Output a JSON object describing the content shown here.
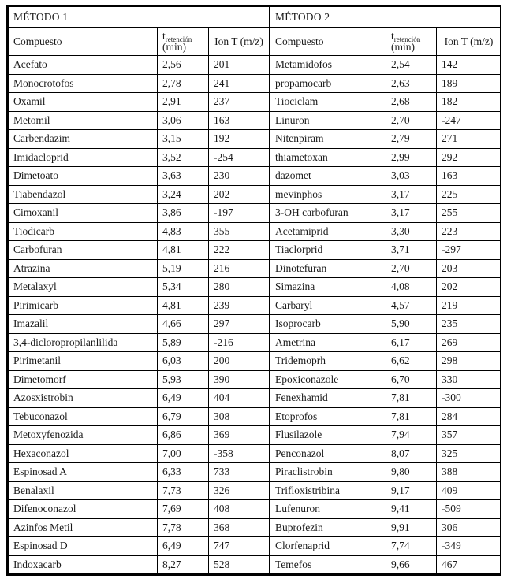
{
  "page": {
    "background": "#ffffff",
    "text_color": "#1a1a1a",
    "border_color": "#000000"
  },
  "chart_data": [
    {
      "type": "table",
      "title": "MÉTODO 1",
      "headers": {
        "compound": "Compuesto",
        "t_symbol": "t",
        "t_sub": "retención",
        "t_unit": "(min)",
        "ion": "Ion T (m/z)"
      },
      "rows": [
        [
          "Acefato",
          "2,56",
          "201"
        ],
        [
          "Monocrotofos",
          "2,78",
          "241"
        ],
        [
          "Oxamil",
          "2,91",
          "237"
        ],
        [
          "Metomil",
          "3,06",
          "163"
        ],
        [
          "Carbendazim",
          "3,15",
          "192"
        ],
        [
          "Imidacloprid",
          "3,52",
          "-254"
        ],
        [
          "Dimetoato",
          "3,63",
          "230"
        ],
        [
          "Tiabendazol",
          "3,24",
          "202"
        ],
        [
          "Cimoxanil",
          "3,86",
          "-197"
        ],
        [
          "Tiodicarb",
          "4,83",
          "355"
        ],
        [
          "Carbofuran",
          "4,81",
          "222"
        ],
        [
          "Atrazina",
          "5,19",
          "216"
        ],
        [
          "Metalaxyl",
          "5,34",
          "280"
        ],
        [
          "Pirimicarb",
          "4,81",
          "239"
        ],
        [
          "Imazalil",
          "4,66",
          "297"
        ],
        [
          "3,4-dicloropropilanlilida",
          "5,89",
          "-216"
        ],
        [
          "Pirimetanil",
          "6,03",
          "200"
        ],
        [
          "Dimetomorf",
          "5,93",
          "390"
        ],
        [
          "Azosxistrobin",
          "6,49",
          "404"
        ],
        [
          "Tebuconazol",
          "6,79",
          "308"
        ],
        [
          "Metoxyfenozida",
          "6,86",
          "369"
        ],
        [
          "Hexaconazol",
          "7,00",
          "-358"
        ],
        [
          "Espinosad A",
          "6,33",
          "733"
        ],
        [
          "Benalaxil",
          "7,73",
          "326"
        ],
        [
          "Difenoconazol",
          "7,69",
          "408"
        ],
        [
          "Azinfos Metil",
          "7,78",
          "368"
        ],
        [
          "Espinosad D",
          "6,49",
          "747"
        ],
        [
          "Indoxacarb",
          "8,27",
          "528"
        ]
      ]
    },
    {
      "type": "table",
      "title": "MÉTODO 2",
      "headers": {
        "compound": "Compuesto",
        "t_symbol": "t",
        "t_sub": "retención",
        "t_unit": "(min)",
        "ion": "Ion T (m/z)"
      },
      "rows": [
        [
          "Metamidofos",
          "2,54",
          "142"
        ],
        [
          "propamocarb",
          "2,63",
          "189"
        ],
        [
          "Tiociclam",
          "2,68",
          "182"
        ],
        [
          "Linuron",
          "2,70",
          "-247"
        ],
        [
          "Nitenpiram",
          "2,79",
          "271"
        ],
        [
          "thiametoxan",
          "2,99",
          "292"
        ],
        [
          "dazomet",
          "3,03",
          "163"
        ],
        [
          "mevinphos",
          "3,17",
          "225"
        ],
        [
          "3-OH carbofuran",
          "3,17",
          "255"
        ],
        [
          "Acetamiprid",
          "3,30",
          "223"
        ],
        [
          "Tiaclorprid",
          "3,71",
          "-297"
        ],
        [
          "Dinotefuran",
          "2,70",
          "203"
        ],
        [
          "Simazina",
          "4,08",
          "202"
        ],
        [
          "Carbaryl",
          "4,57",
          "219"
        ],
        [
          "Isoprocarb",
          "5,90",
          "235"
        ],
        [
          "Ametrina",
          "6,17",
          "269"
        ],
        [
          "Tridemoprh",
          "6,62",
          "298"
        ],
        [
          "Epoxiconazole",
          "6,70",
          "330"
        ],
        [
          "Fenexhamid",
          "7,81",
          "-300"
        ],
        [
          "Etoprofos",
          "7,81",
          "284"
        ],
        [
          "Flusilazole",
          "7,94",
          "357"
        ],
        [
          "Penconazol",
          "8,07",
          "325"
        ],
        [
          "Piraclistrobin",
          "9,80",
          "388"
        ],
        [
          "Trifloxistribina",
          "9,17",
          "409"
        ],
        [
          "Lufenuron",
          "9,41",
          "-509"
        ],
        [
          "Buprofezin",
          "9,91",
          "306"
        ],
        [
          "Clorfenaprid",
          "7,74",
          "-349"
        ],
        [
          "Temefos",
          "9,66",
          "467"
        ]
      ]
    }
  ]
}
